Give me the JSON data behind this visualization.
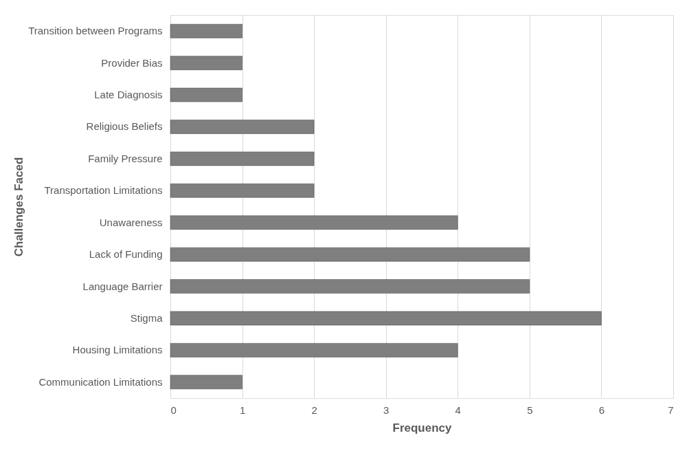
{
  "chart_data": {
    "type": "bar",
    "orientation": "horizontal",
    "xlabel": "Frequency",
    "ylabel": "Challenges Faced",
    "categories": [
      "Transition between Programs",
      "Provider Bias",
      "Late Diagnosis",
      "Religious Beliefs",
      "Family Pressure",
      "Transportation Limitations",
      "Unawareness",
      "Lack of Funding",
      "Language Barrier",
      "Stigma",
      "Housing Limitations",
      "Communication Limitations"
    ],
    "values": [
      1,
      1,
      1,
      2,
      2,
      2,
      4,
      5,
      5,
      6,
      4,
      1
    ],
    "color": "#7f7f7f",
    "xlim": [
      0,
      7
    ],
    "xticks": [
      0,
      1,
      2,
      3,
      4,
      5,
      6,
      7
    ],
    "grid": "x"
  }
}
